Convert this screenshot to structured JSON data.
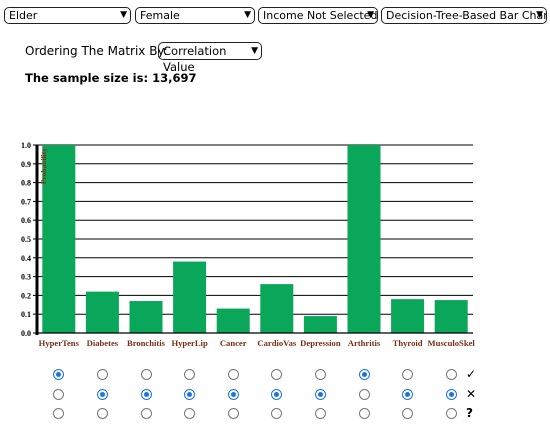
{
  "filters": {
    "age": "Elder",
    "sex": "Female",
    "income": "Income Not Selected",
    "chart_kind": "Decision-Tree-Based Bar Chart"
  },
  "ordering": {
    "label": "Ordering The Matrix By:",
    "value": "Correlation Value"
  },
  "sample": {
    "text": "The sample size is: 13,697"
  },
  "colors": {
    "bar": "#0aa65a",
    "label": "#7a2f14",
    "radio_on": "#1a73e8"
  },
  "chart_data": {
    "type": "bar",
    "categories": [
      "HyperTens",
      "Diabetes",
      "Bronchitis",
      "HyperLip",
      "Cancer",
      "CardioVas",
      "Depression",
      "Arthritis",
      "Thyroid",
      "MusculoSkel"
    ],
    "values": [
      1.0,
      0.22,
      0.17,
      0.38,
      0.13,
      0.26,
      0.09,
      1.0,
      0.18,
      0.175
    ],
    "ylabel": "Probability",
    "ylim": [
      0,
      1.0
    ],
    "yticks": [
      "0.0",
      "0.1",
      "0.2",
      "0.3",
      "0.4",
      "0.5",
      "0.6",
      "0.7",
      "0.8",
      "0.9",
      "1.0"
    ],
    "grid": true
  },
  "answers": {
    "rows": [
      "yes",
      "no",
      "unsure"
    ],
    "symbols": [
      "✓",
      "✕",
      "?"
    ],
    "selected": [
      0,
      1,
      1,
      1,
      1,
      1,
      1,
      0,
      1,
      1
    ]
  }
}
